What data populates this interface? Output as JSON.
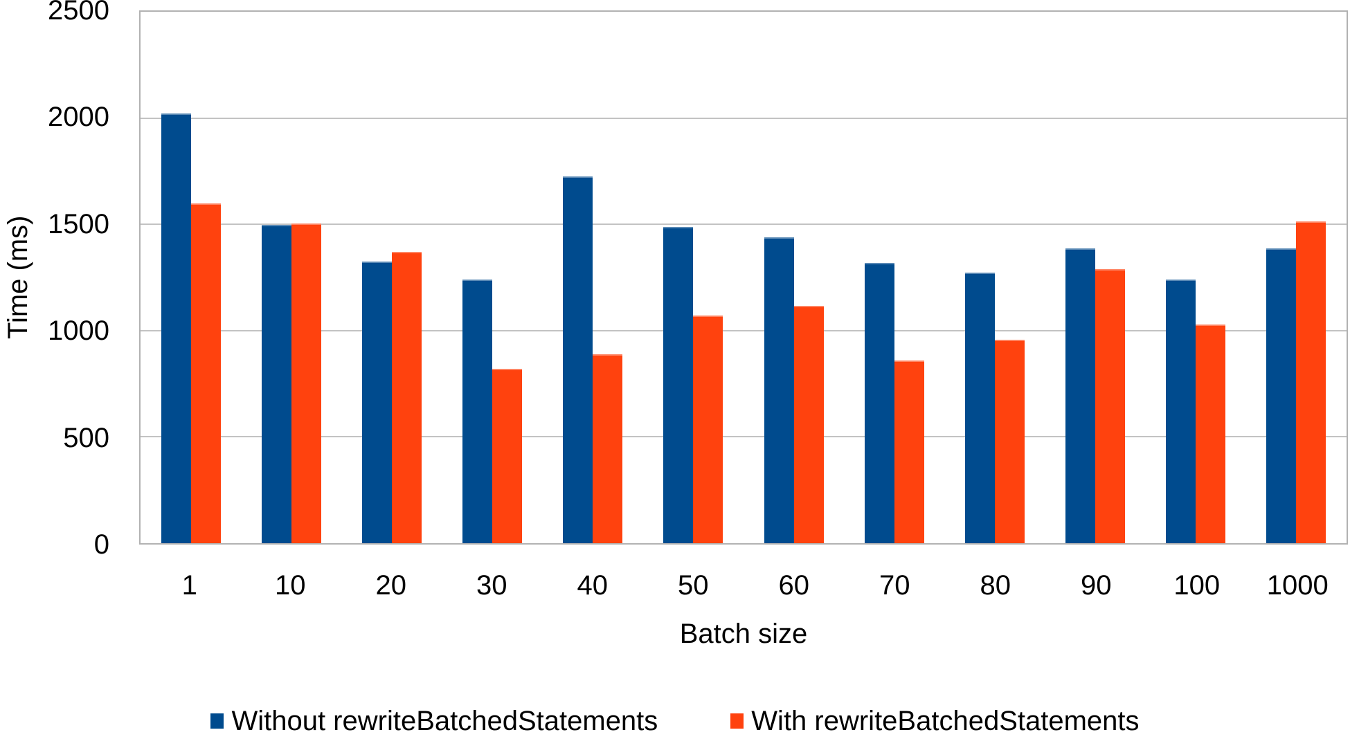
{
  "chart_data": {
    "type": "bar",
    "title": "",
    "xlabel": "Batch size",
    "ylabel": "Time (ms)",
    "categories": [
      "1",
      "10",
      "20",
      "30",
      "40",
      "50",
      "60",
      "70",
      "80",
      "90",
      "100",
      "1000"
    ],
    "series": [
      {
        "name": "Without rewriteBatchedStatements",
        "color": "#004B8E",
        "values": [
          2020,
          1496,
          1324,
          1240,
          1724,
          1488,
          1438,
          1318,
          1273,
          1388,
          1239,
          1387
        ]
      },
      {
        "name": "With rewriteBatchedStatements",
        "color": "#FF420E",
        "values": [
          1598,
          1505,
          1372,
          820,
          890,
          1070,
          1117,
          858,
          957,
          1288,
          1028,
          1513
        ]
      }
    ],
    "ylim": [
      0,
      2500
    ],
    "yticks": [
      0,
      500,
      1000,
      1500,
      2000,
      2500
    ],
    "grid": true,
    "legend_position": "bottom",
    "plot_border_color": "#b2b2b2",
    "gridline_color": "#c3c3c3"
  }
}
